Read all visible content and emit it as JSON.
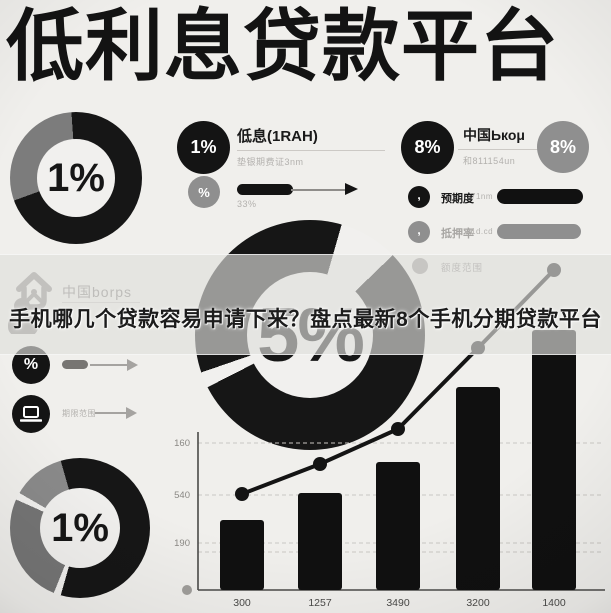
{
  "title": "低利息贷款平台",
  "headline": "手机哪几个贷款容易申请下来？盘点最新8个手机分期贷款平台",
  "donuts": {
    "top_left": {
      "value": "1%"
    },
    "center": {
      "value": "5%"
    },
    "bottom_left": {
      "value": "1%"
    }
  },
  "low_interest_section": {
    "badge": "1%",
    "heading": "低息(1RAH)",
    "subtext": "垫银期费证3nm",
    "percent_icon": "%",
    "caption": "33%"
  },
  "china_section": {
    "badge": "8%",
    "heading": "中国Ькоμ",
    "subtext": "和811154un",
    "badge2": "8%",
    "rows": [
      {
        "icon": ",",
        "label": "预期度",
        "sublabel": "71nm"
      },
      {
        "icon": ",",
        "label": "抵押率",
        "sublabel": "1d.cd"
      }
    ],
    "legend_label": "额度范围"
  },
  "brand_section": {
    "name": "中国borps"
  },
  "metrics_section": {
    "percent_icon": "%",
    "row2_label": "期限范围"
  },
  "chart_data": {
    "type": "bar+line",
    "categories": [
      "300",
      "1257",
      "3490",
      "3200",
      "1400"
    ],
    "series": [
      {
        "name": "bars",
        "type": "bar",
        "values": [
          70,
          97,
          128,
          203,
          260
        ]
      },
      {
        "name": "trend",
        "type": "line",
        "values": [
          96,
          126,
          161,
          242,
          320
        ]
      }
    ],
    "yticks": [
      "160",
      "540",
      "190"
    ],
    "ylabel": "",
    "xlabel": "",
    "grid": "dashed-horizontal",
    "note": "bar/line heights estimated from pixels; tick text is stylized"
  }
}
